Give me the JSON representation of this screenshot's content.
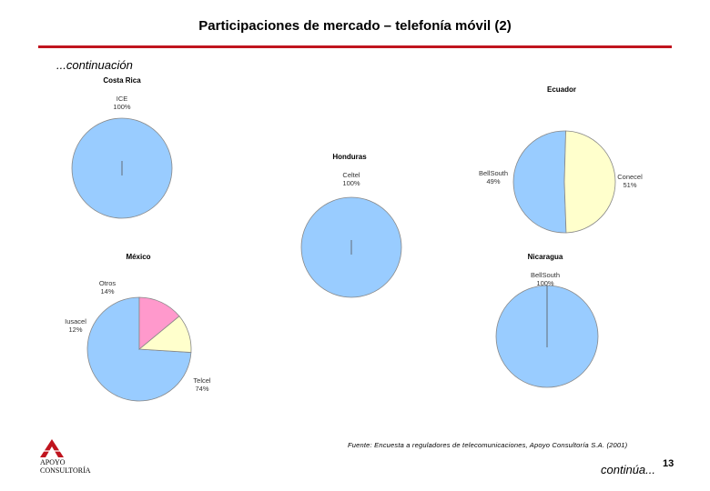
{
  "header": {
    "title": "Participaciones de mercado – telefonía móvil (2)",
    "continuation": "...continuación"
  },
  "chart_data": [
    {
      "type": "pie",
      "title": "Costa Rica",
      "slices": [
        {
          "label": "ICE",
          "value": 100,
          "color": "#99ccff"
        }
      ]
    },
    {
      "type": "pie",
      "title": "Ecuador",
      "slices": [
        {
          "label": "Conecel",
          "value": 51,
          "color": "#99ccff"
        },
        {
          "label": "BellSouth",
          "value": 49,
          "color": "#ffffcc"
        }
      ]
    },
    {
      "type": "pie",
      "title": "Honduras",
      "slices": [
        {
          "label": "Celtel",
          "value": 100,
          "color": "#99ccff"
        }
      ]
    },
    {
      "type": "pie",
      "title": "México",
      "slices": [
        {
          "label": "Telcel",
          "value": 74,
          "color": "#99ccff"
        },
        {
          "label": "Iusacel",
          "value": 12,
          "color": "#ffffcc"
        },
        {
          "label": "Otros",
          "value": 14,
          "color": "#ff99cc"
        }
      ]
    },
    {
      "type": "pie",
      "title": "Nicaragua",
      "slices": [
        {
          "label": "BellSouth",
          "value": 100,
          "color": "#99ccff"
        }
      ]
    }
  ],
  "footer": {
    "source": "Fuente: Encuesta a reguladores de telecomunicaciones, Apoyo Consultoría S.A. (2001)",
    "continues": "continúa...",
    "page_number": "13",
    "logo_line1": "APOYO",
    "logo_line2": "CONSULTORÍA",
    "logo_color": "#c0141e"
  }
}
